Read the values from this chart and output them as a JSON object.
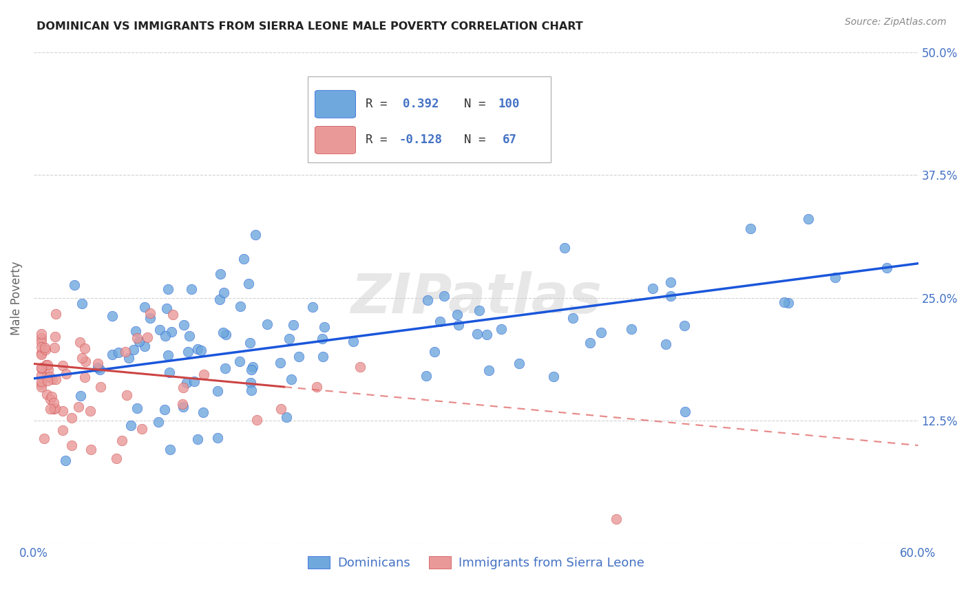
{
  "title": "DOMINICAN VS IMMIGRANTS FROM SIERRA LEONE MALE POVERTY CORRELATION CHART",
  "source": "Source: ZipAtlas.com",
  "ylabel": "Male Poverty",
  "xlim": [
    0.0,
    0.6
  ],
  "ylim": [
    0.0,
    0.5
  ],
  "dominican_color": "#6fa8dc",
  "dominican_edge_color": "#1a56db",
  "sierra_leone_color": "#ea9999",
  "sierra_leone_edge_color": "#cc4444",
  "trendline_dominican_color": "#1a56db",
  "trendline_sierra_leone_solid_color": "#cc4444",
  "trendline_sierra_leone_dashed_color": "#e06666",
  "legend_R_dominican": "0.392",
  "legend_N_dominican": "100",
  "legend_R_sierra_leone": "-0.128",
  "legend_N_sierra_leone": "67",
  "watermark": "ZIPatlas",
  "background_color": "#ffffff",
  "grid_color": "#cccccc",
  "tick_color": "#4472c4",
  "ylabel_color": "#666666",
  "title_color": "#222222",
  "source_color": "#888888"
}
